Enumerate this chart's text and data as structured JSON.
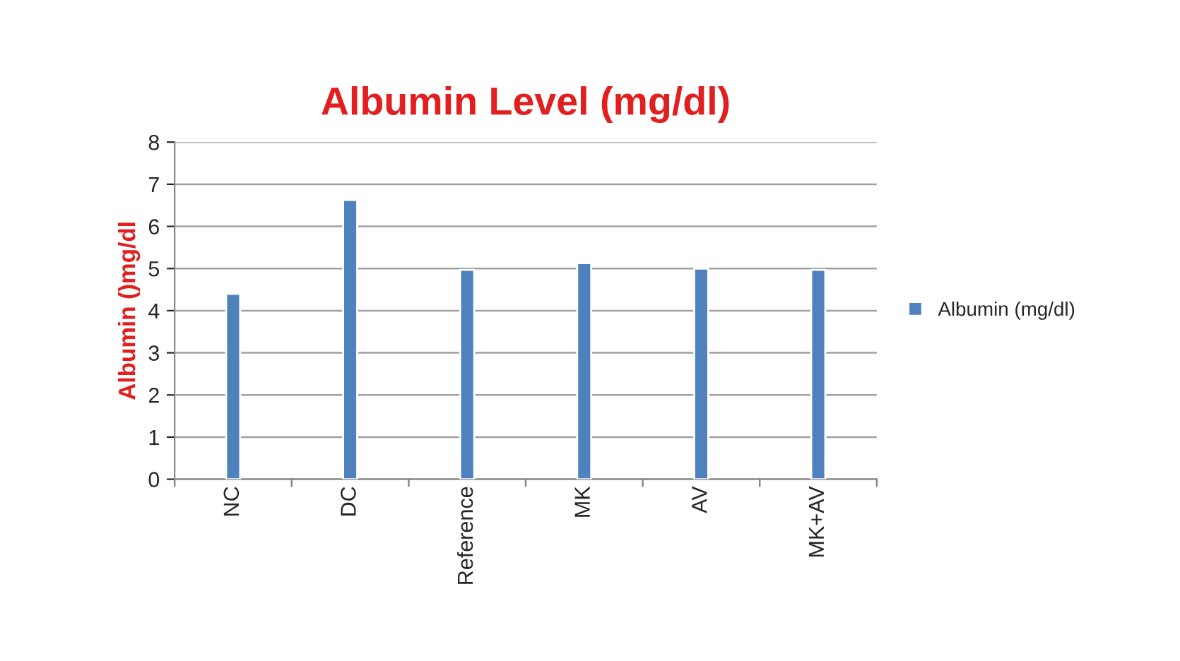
{
  "chart_data": {
    "type": "bar",
    "title": "Albumin Level (mg/dl)",
    "ylabel": "Albumin ()mg/dl",
    "categories": [
      "NC",
      "DC",
      "Reference",
      "MK",
      "AV",
      "MK+AV"
    ],
    "series": [
      {
        "name": "Albumin (mg/dl)",
        "color": "#4f81bd",
        "values": [
          4.4,
          6.63,
          4.97,
          5.13,
          5.0,
          4.97
        ]
      }
    ],
    "ylim": [
      0,
      8
    ],
    "yticks": [
      0,
      1,
      2,
      3,
      4,
      5,
      6,
      7,
      8
    ],
    "grid": "y",
    "legend": "right"
  }
}
